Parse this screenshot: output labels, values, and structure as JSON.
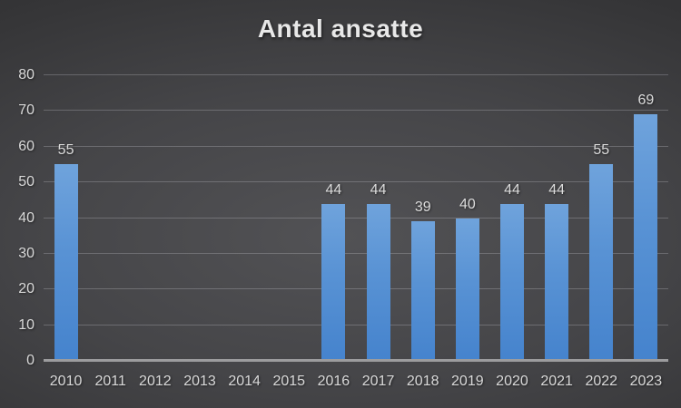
{
  "chart_data": {
    "type": "bar",
    "title": "Antal ansatte",
    "categories": [
      "2010",
      "2011",
      "2012",
      "2013",
      "2014",
      "2015",
      "2016",
      "2017",
      "2018",
      "2019",
      "2020",
      "2021",
      "2022",
      "2023"
    ],
    "values": [
      55,
      null,
      null,
      null,
      null,
      null,
      44,
      44,
      39,
      40,
      44,
      44,
      55,
      69
    ],
    "data_labels": [
      "55",
      "",
      "",
      "",
      "",
      "",
      "44",
      "44",
      "39",
      "40",
      "44",
      "44",
      "55",
      "69"
    ],
    "xlabel": "",
    "ylabel": "",
    "ylim": [
      0,
      80
    ],
    "yticks": [
      0,
      10,
      20,
      30,
      40,
      50,
      60,
      70,
      80
    ],
    "grid": true,
    "legend": false,
    "colors": {
      "bar_gradient_top": "#6FA3DC",
      "bar_gradient_bottom": "#4583CD",
      "background_center": "#525255",
      "background_edge": "#28282A",
      "gridline": "#6A6A6E",
      "axis_line": "#9C9C9E",
      "text": "#D9D9D9",
      "title_text": "#E8E8E8"
    }
  }
}
